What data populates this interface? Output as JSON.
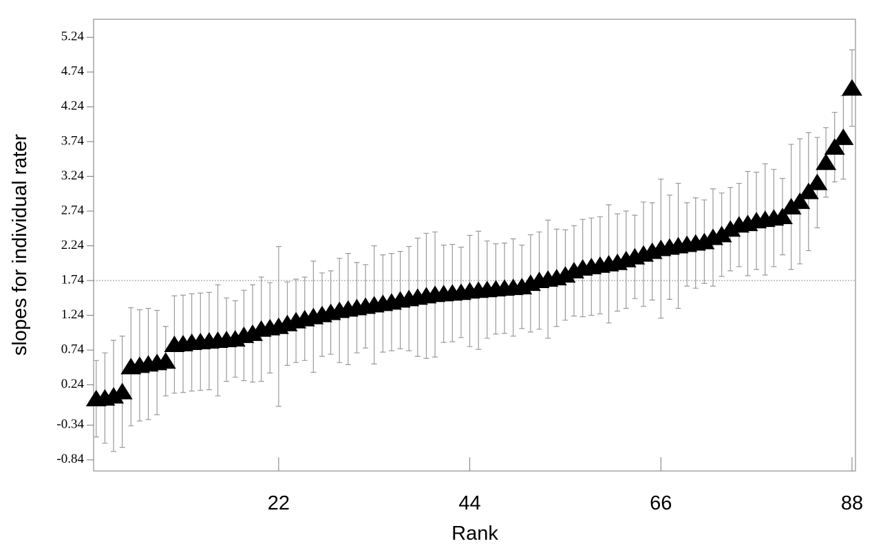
{
  "chart_data": {
    "type": "errorbar",
    "x_label": "Rank",
    "y_label": "slopes for individual rater",
    "x": [
      1,
      2,
      3,
      4,
      5,
      6,
      7,
      8,
      9,
      10,
      11,
      12,
      13,
      14,
      15,
      16,
      17,
      18,
      19,
      20,
      21,
      22,
      23,
      24,
      25,
      26,
      27,
      28,
      29,
      30,
      31,
      32,
      33,
      34,
      35,
      36,
      37,
      38,
      39,
      40,
      41,
      42,
      43,
      44,
      45,
      46,
      47,
      48,
      49,
      50,
      51,
      52,
      53,
      54,
      55,
      56,
      57,
      58,
      59,
      60,
      61,
      62,
      63,
      64,
      65,
      66,
      67,
      68,
      69,
      70,
      71,
      72,
      73,
      74,
      75,
      76,
      77,
      78,
      79,
      80,
      81,
      82,
      83,
      84,
      85,
      86,
      87,
      88
    ],
    "values": [
      0.04,
      0.05,
      0.08,
      0.14,
      0.5,
      0.52,
      0.54,
      0.56,
      0.58,
      0.82,
      0.83,
      0.85,
      0.86,
      0.87,
      0.88,
      0.89,
      0.9,
      0.95,
      0.98,
      1.04,
      1.06,
      1.08,
      1.12,
      1.16,
      1.19,
      1.22,
      1.25,
      1.28,
      1.31,
      1.33,
      1.35,
      1.37,
      1.39,
      1.41,
      1.43,
      1.46,
      1.48,
      1.5,
      1.52,
      1.54,
      1.55,
      1.56,
      1.57,
      1.59,
      1.6,
      1.61,
      1.62,
      1.63,
      1.64,
      1.65,
      1.7,
      1.74,
      1.76,
      1.78,
      1.82,
      1.88,
      1.92,
      1.94,
      1.96,
      1.98,
      2.0,
      2.04,
      2.08,
      2.12,
      2.16,
      2.2,
      2.22,
      2.24,
      2.26,
      2.28,
      2.3,
      2.36,
      2.4,
      2.48,
      2.54,
      2.56,
      2.6,
      2.62,
      2.64,
      2.66,
      2.8,
      2.88,
      3.02,
      3.15,
      3.44,
      3.66,
      3.8,
      4.51
    ],
    "errors": [
      0.55,
      0.65,
      0.8,
      0.8,
      0.85,
      0.8,
      0.8,
      0.75,
      0.5,
      0.7,
      0.7,
      0.7,
      0.7,
      0.7,
      0.8,
      0.6,
      0.55,
      0.65,
      0.7,
      0.75,
      0.65,
      1.15,
      0.6,
      0.6,
      0.6,
      0.8,
      0.6,
      0.6,
      0.75,
      0.8,
      0.65,
      0.6,
      0.85,
      0.7,
      0.7,
      0.7,
      0.75,
      0.85,
      0.9,
      0.9,
      0.7,
      0.7,
      0.65,
      0.8,
      0.85,
      0.7,
      0.65,
      0.65,
      0.7,
      0.6,
      0.7,
      0.7,
      0.85,
      0.7,
      0.65,
      0.65,
      0.7,
      0.7,
      0.7,
      0.85,
      0.7,
      0.7,
      0.6,
      0.75,
      0.7,
      1.0,
      0.75,
      0.9,
      0.6,
      0.65,
      0.6,
      0.7,
      0.6,
      0.6,
      0.6,
      0.75,
      0.7,
      0.8,
      0.7,
      0.55,
      0.9,
      0.9,
      0.85,
      0.65,
      0.5,
      0.5,
      0.6,
      0.55
    ],
    "color": "#000000",
    "reference_line": 1.74,
    "xlim": [
      0.7,
      88.4
    ],
    "ylim": [
      -1.0,
      5.5
    ],
    "xticks": [
      22,
      44,
      66,
      88
    ],
    "yticks": [
      5.24,
      4.74,
      4.24,
      3.74,
      3.24,
      2.74,
      2.24,
      1.74,
      1.24,
      0.74,
      0.24,
      -0.34,
      -0.84
    ]
  }
}
